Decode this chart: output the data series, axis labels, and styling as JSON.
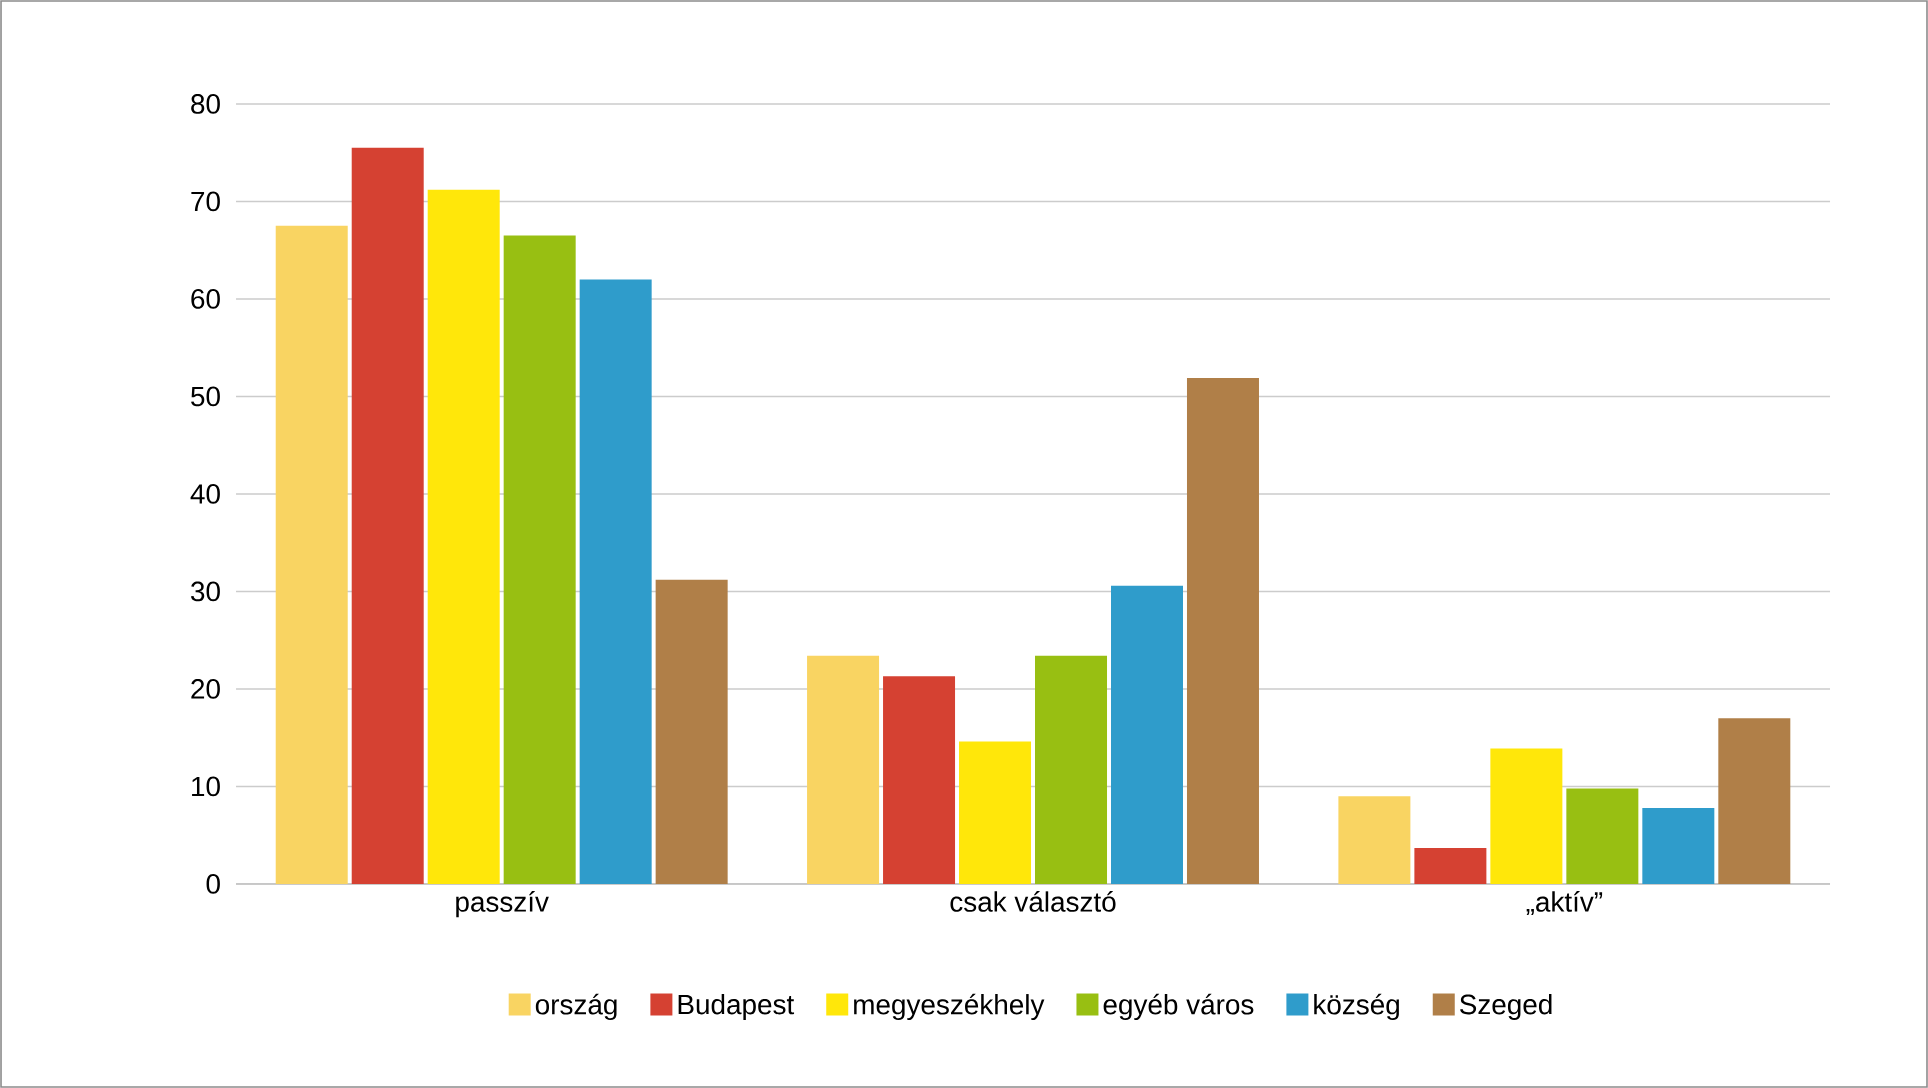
{
  "chart_data": {
    "type": "bar",
    "categories": [
      "passzív",
      "csak választó",
      "„aktív”"
    ],
    "series": [
      {
        "name": "ország",
        "color": "#f9d462",
        "values": [
          67.5,
          23.4,
          9.0
        ]
      },
      {
        "name": "Budapest",
        "color": "#d54132",
        "values": [
          75.5,
          21.3,
          3.7
        ]
      },
      {
        "name": "megyeszékhely",
        "color": "#ffe70a",
        "values": [
          71.2,
          14.6,
          13.9
        ]
      },
      {
        "name": "egyéb város",
        "color": "#98bf12",
        "values": [
          66.5,
          23.4,
          9.8
        ]
      },
      {
        "name": "község",
        "color": "#2f9ccb",
        "values": [
          62.0,
          30.6,
          7.8
        ]
      },
      {
        "name": "Szeged",
        "color": "#b07f48",
        "values": [
          31.2,
          51.9,
          17.0
        ]
      }
    ],
    "ylim": [
      0,
      80
    ],
    "yticks": [
      0,
      10,
      20,
      30,
      40,
      50,
      60,
      70,
      80
    ],
    "grid": "y",
    "legend": "bottom"
  }
}
